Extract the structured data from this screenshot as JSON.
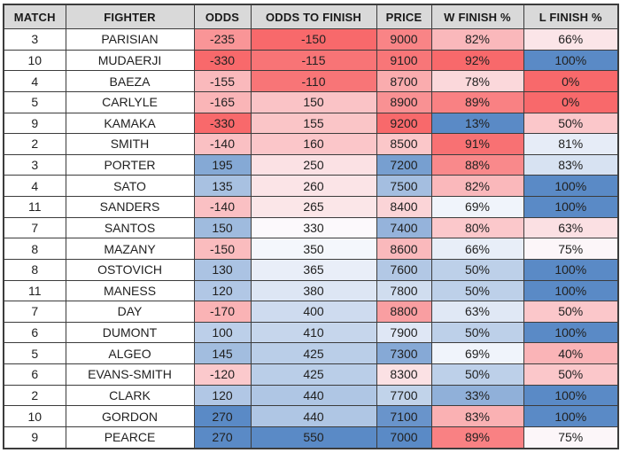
{
  "colors": {
    "page_bg": "#FFFFFF",
    "header_bg": "#D9D9D9",
    "header_text": "#1A1A1A",
    "cell_text": "#212121",
    "cell_bg": "#FFFFFF",
    "border": "#3C3C3C",
    "scale_red": "#F8696B",
    "scale_white": "#FCFCFF",
    "scale_blue": "#5A8AC6"
  },
  "chart_data": {
    "type": "table",
    "title": "Fighter odds-to-finish table with red-white-blue conditional formatting",
    "color_scale_midpoint": "median",
    "columns": [
      {
        "key": "match",
        "label": "MATCH",
        "color_scale": "none"
      },
      {
        "key": "fighter",
        "label": "FIGHTER",
        "color_scale": "none"
      },
      {
        "key": "odds",
        "label": "ODDS",
        "color_scale": "red_white_blue"
      },
      {
        "key": "odds_to_finish",
        "label": "ODDS TO FINISH",
        "color_scale": "red_white_blue"
      },
      {
        "key": "price",
        "label": "PRICE",
        "color_scale": "blue_white_red"
      },
      {
        "key": "w_finish_pct",
        "label": "W FINISH %",
        "color_scale": "blue_white_red"
      },
      {
        "key": "l_finish_pct",
        "label": "L FINISH %",
        "color_scale": "red_white_blue"
      }
    ],
    "rows": [
      {
        "match": "3",
        "fighter": "PARISIAN",
        "odds": "-235",
        "odds_to_finish": "-150",
        "price": "9000",
        "w_finish_pct": "82%",
        "l_finish_pct": "66%"
      },
      {
        "match": "10",
        "fighter": "MUDAERJI",
        "odds": "-330",
        "odds_to_finish": "-115",
        "price": "9100",
        "w_finish_pct": "92%",
        "l_finish_pct": "100%"
      },
      {
        "match": "4",
        "fighter": "BAEZA",
        "odds": "-155",
        "odds_to_finish": "-110",
        "price": "8700",
        "w_finish_pct": "78%",
        "l_finish_pct": "0%"
      },
      {
        "match": "5",
        "fighter": "CARLYLE",
        "odds": "-165",
        "odds_to_finish": "150",
        "price": "8900",
        "w_finish_pct": "89%",
        "l_finish_pct": "0%"
      },
      {
        "match": "9",
        "fighter": "KAMAKA",
        "odds": "-330",
        "odds_to_finish": "155",
        "price": "9200",
        "w_finish_pct": "13%",
        "l_finish_pct": "50%"
      },
      {
        "match": "2",
        "fighter": "SMITH",
        "odds": "-140",
        "odds_to_finish": "160",
        "price": "8500",
        "w_finish_pct": "91%",
        "l_finish_pct": "81%"
      },
      {
        "match": "3",
        "fighter": "PORTER",
        "odds": "195",
        "odds_to_finish": "250",
        "price": "7200",
        "w_finish_pct": "88%",
        "l_finish_pct": "83%"
      },
      {
        "match": "4",
        "fighter": "SATO",
        "odds": "135",
        "odds_to_finish": "260",
        "price": "7500",
        "w_finish_pct": "82%",
        "l_finish_pct": "100%"
      },
      {
        "match": "11",
        "fighter": "SANDERS",
        "odds": "-140",
        "odds_to_finish": "265",
        "price": "8400",
        "w_finish_pct": "69%",
        "l_finish_pct": "100%"
      },
      {
        "match": "7",
        "fighter": "SANTOS",
        "odds": "150",
        "odds_to_finish": "330",
        "price": "7400",
        "w_finish_pct": "80%",
        "l_finish_pct": "63%"
      },
      {
        "match": "8",
        "fighter": "MAZANY",
        "odds": "-150",
        "odds_to_finish": "350",
        "price": "8600",
        "w_finish_pct": "66%",
        "l_finish_pct": "75%"
      },
      {
        "match": "8",
        "fighter": "OSTOVICH",
        "odds": "130",
        "odds_to_finish": "365",
        "price": "7600",
        "w_finish_pct": "50%",
        "l_finish_pct": "100%"
      },
      {
        "match": "11",
        "fighter": "MANESS",
        "odds": "120",
        "odds_to_finish": "380",
        "price": "7800",
        "w_finish_pct": "50%",
        "l_finish_pct": "100%"
      },
      {
        "match": "7",
        "fighter": "DAY",
        "odds": "-170",
        "odds_to_finish": "400",
        "price": "8800",
        "w_finish_pct": "63%",
        "l_finish_pct": "50%"
      },
      {
        "match": "6",
        "fighter": "DUMONT",
        "odds": "100",
        "odds_to_finish": "410",
        "price": "7900",
        "w_finish_pct": "50%",
        "l_finish_pct": "100%"
      },
      {
        "match": "5",
        "fighter": "ALGEO",
        "odds": "145",
        "odds_to_finish": "425",
        "price": "7300",
        "w_finish_pct": "69%",
        "l_finish_pct": "40%"
      },
      {
        "match": "6",
        "fighter": "EVANS-SMITH",
        "odds": "-120",
        "odds_to_finish": "425",
        "price": "8300",
        "w_finish_pct": "50%",
        "l_finish_pct": "50%"
      },
      {
        "match": "2",
        "fighter": "CLARK",
        "odds": "120",
        "odds_to_finish": "440",
        "price": "7700",
        "w_finish_pct": "33%",
        "l_finish_pct": "100%"
      },
      {
        "match": "10",
        "fighter": "GORDON",
        "odds": "270",
        "odds_to_finish": "440",
        "price": "7100",
        "w_finish_pct": "83%",
        "l_finish_pct": "100%"
      },
      {
        "match": "9",
        "fighter": "PEARCE",
        "odds": "270",
        "odds_to_finish": "550",
        "price": "7000",
        "w_finish_pct": "89%",
        "l_finish_pct": "75%"
      }
    ]
  }
}
